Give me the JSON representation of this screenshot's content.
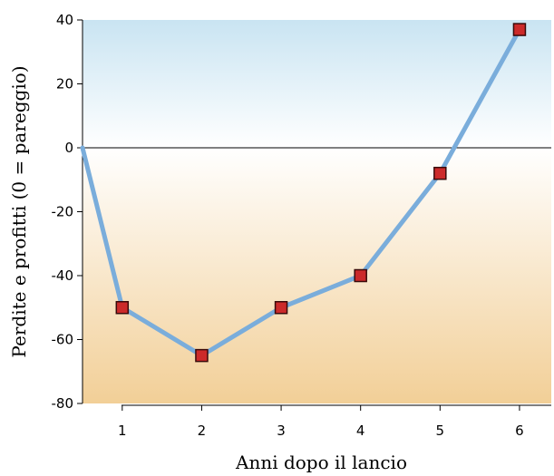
{
  "chart_data": {
    "type": "line",
    "title": "",
    "xlabel": "Anni dopo il lancio",
    "ylabel": "Perdite e profitti (0 = pareggio)",
    "x": [
      0.5,
      1,
      2,
      3,
      4,
      5,
      6
    ],
    "y": [
      0,
      -50,
      -65,
      -50,
      -40,
      -8,
      37
    ],
    "marker_x": [
      1,
      2,
      3,
      4,
      5,
      6
    ],
    "marker_y": [
      -50,
      -65,
      -50,
      -40,
      -8,
      37
    ],
    "xlim": [
      0.5,
      6.4
    ],
    "ylim": [
      -80,
      40
    ],
    "xticks": [
      1,
      2,
      3,
      4,
      5,
      6
    ],
    "yticks": [
      40,
      20,
      0,
      -20,
      -40,
      -60,
      -80
    ],
    "baseline": 0,
    "grid": false,
    "legend": "none",
    "colors": {
      "line": "#7aaddb",
      "marker_fill": "#cc2a2a",
      "marker_stroke": "#3a0a0a",
      "positive_bg_top": "#c9e4f2",
      "positive_bg_bottom": "#ffffff",
      "negative_bg_top": "#ffffff",
      "negative_bg_bottom": "#f2cf97"
    }
  }
}
